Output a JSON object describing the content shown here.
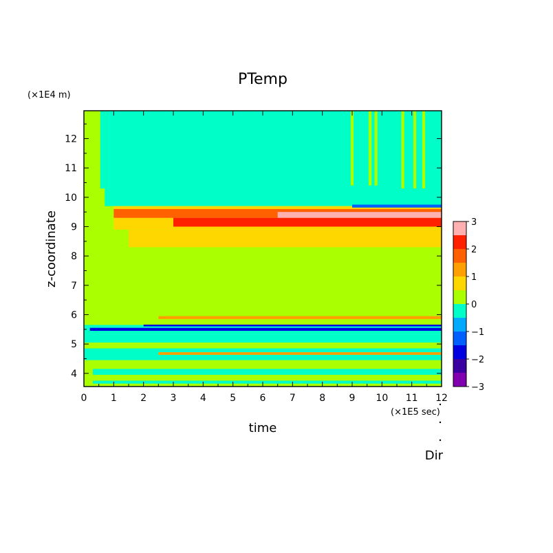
{
  "chart_data": {
    "type": "heatmap",
    "title": "PTemp",
    "xlabel": "time",
    "ylabel": "z-coordinate",
    "x_unit": "(×1E5 sec)",
    "y_unit": "(×1E4 m)",
    "corner_label": "Dir",
    "xlim": [
      0,
      12
    ],
    "ylim": [
      3.55,
      12.95
    ],
    "x_ticks": [
      "0",
      "1",
      "2",
      "3",
      "4",
      "5",
      "6",
      "7",
      "8",
      "9",
      "10",
      "11",
      "12"
    ],
    "y_ticks": [
      "4",
      "5",
      "6",
      "7",
      "8",
      "9",
      "10",
      "11",
      "12"
    ],
    "colorbar": {
      "min": -3,
      "max": 3,
      "labels": [
        "3",
        "2",
        "1",
        "0",
        "−1",
        "−2",
        "−3"
      ],
      "levels": [
        {
          "from": -3.0,
          "to": -2.5,
          "color": "#8000b0"
        },
        {
          "from": -2.5,
          "to": -2.0,
          "color": "#3a00a0"
        },
        {
          "from": -2.0,
          "to": -1.5,
          "color": "#0000e0"
        },
        {
          "from": -1.5,
          "to": -1.0,
          "color": "#0060ff"
        },
        {
          "from": -1.0,
          "to": -0.5,
          "color": "#00aaff"
        },
        {
          "from": -0.5,
          "to": 0.0,
          "color": "#00ffc8"
        },
        {
          "from": 0.0,
          "to": 0.5,
          "color": "#aaff00"
        },
        {
          "from": 0.5,
          "to": 1.0,
          "color": "#ffd700"
        },
        {
          "from": 1.0,
          "to": 1.5,
          "color": "#ffa000"
        },
        {
          "from": 1.5,
          "to": 2.0,
          "color": "#ff6000"
        },
        {
          "from": 2.0,
          "to": 2.5,
          "color": "#ff2000"
        },
        {
          "from": 2.5,
          "to": 3.0,
          "color": "#ffb0b0"
        }
      ]
    },
    "regions": [
      {
        "x": [
          0,
          12
        ],
        "z": [
          3.55,
          12.95
        ],
        "level": 0.2
      },
      {
        "x": [
          0.7,
          12
        ],
        "z": [
          9.7,
          12.95
        ],
        "level": -0.2
      },
      {
        "x": [
          0.55,
          0.7
        ],
        "z": [
          10.3,
          12.95
        ],
        "level": -0.2
      },
      {
        "x": [
          0,
          12
        ],
        "z": [
          5.05,
          5.65
        ],
        "level": -0.2
      },
      {
        "x": [
          0,
          12
        ],
        "z": [
          4.45,
          4.85
        ],
        "level": -0.2
      },
      {
        "x": [
          0.3,
          12
        ],
        "z": [
          3.95,
          4.15
        ],
        "level": -0.2
      },
      {
        "x": [
          0.3,
          12
        ],
        "z": [
          3.65,
          3.75
        ],
        "level": -0.2
      },
      {
        "x": [
          0.2,
          12
        ],
        "z": [
          5.45,
          5.55
        ],
        "level": -1.75
      },
      {
        "x": [
          2,
          12
        ],
        "z": [
          5.6,
          5.66
        ],
        "level": -1.75
      },
      {
        "x": [
          2.5,
          12
        ],
        "z": [
          5.85,
          5.95
        ],
        "level": 1.25
      },
      {
        "x": [
          2.5,
          12
        ],
        "z": [
          4.63,
          4.72
        ],
        "level": 1.25
      },
      {
        "x": [
          1.0,
          12
        ],
        "z": [
          8.9,
          9.7
        ],
        "level": 0.75
      },
      {
        "x": [
          1.5,
          12
        ],
        "z": [
          8.3,
          8.9
        ],
        "level": 0.75
      },
      {
        "x": [
          1.0,
          12
        ],
        "z": [
          9.3,
          9.6
        ],
        "level": 1.75
      },
      {
        "x": [
          3.0,
          12
        ],
        "z": [
          9.0,
          9.3
        ],
        "level": 2.25
      },
      {
        "x": [
          6.5,
          12
        ],
        "z": [
          9.3,
          9.5
        ],
        "level": 2.75
      },
      {
        "x": [
          9.0,
          12
        ],
        "z": [
          9.65,
          9.75
        ],
        "level": -1.25
      },
      {
        "x": [
          8.95,
          9.05
        ],
        "z": [
          10.4,
          12.95
        ],
        "level": 0.2
      },
      {
        "x": [
          9.55,
          9.65
        ],
        "z": [
          10.4,
          12.95
        ],
        "level": 0.2
      },
      {
        "x": [
          9.75,
          9.85
        ],
        "z": [
          10.4,
          12.95
        ],
        "level": 0.2
      },
      {
        "x": [
          10.65,
          10.75
        ],
        "z": [
          10.3,
          12.95
        ],
        "level": 0.2
      },
      {
        "x": [
          11.05,
          11.15
        ],
        "z": [
          10.3,
          12.95
        ],
        "level": 0.2
      },
      {
        "x": [
          11.35,
          11.45
        ],
        "z": [
          10.3,
          12.95
        ],
        "level": 0.2
      }
    ]
  }
}
